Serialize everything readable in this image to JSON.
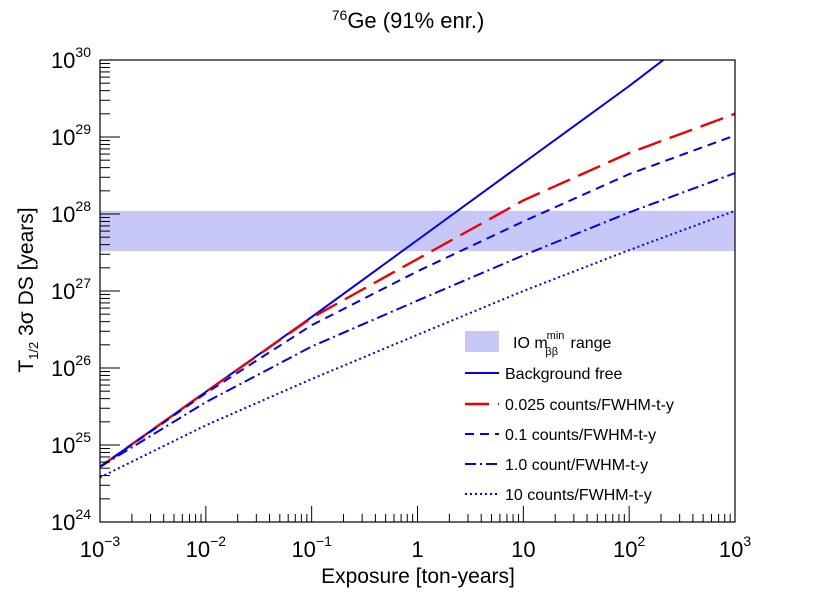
{
  "chart_data": {
    "type": "line",
    "title": {
      "sup": "76",
      "text": "Ge (91% enr.)"
    },
    "xlabel": "Exposure [ton-years]",
    "ylabel": {
      "base": "T",
      "sub": "1/2",
      "rest": " 3σ DS [years]"
    },
    "xscale": "log",
    "yscale": "log",
    "xlim": [
      0.001,
      1000
    ],
    "ylim": [
      1e+24,
      1e+30
    ],
    "x_ticks": [
      {
        "value": 0.001,
        "base": "10",
        "exp": "−3"
      },
      {
        "value": 0.01,
        "base": "10",
        "exp": "−2"
      },
      {
        "value": 0.1,
        "base": "10",
        "exp": "−1"
      },
      {
        "value": 1,
        "base": "1",
        "exp": ""
      },
      {
        "value": 10,
        "base": "10",
        "exp": ""
      },
      {
        "value": 100,
        "base": "10",
        "exp": "2"
      },
      {
        "value": 1000,
        "base": "10",
        "exp": "3"
      }
    ],
    "y_ticks": [
      {
        "value": 1e+24,
        "base": "10",
        "exp": "24"
      },
      {
        "value": 1e+25,
        "base": "10",
        "exp": "25"
      },
      {
        "value": 1e+26,
        "base": "10",
        "exp": "26"
      },
      {
        "value": 1e+27,
        "base": "10",
        "exp": "27"
      },
      {
        "value": 1e+28,
        "base": "10",
        "exp": "28"
      },
      {
        "value": 1e+29,
        "base": "10",
        "exp": "29"
      },
      {
        "value": 1e+30,
        "base": "10",
        "exp": "30"
      }
    ],
    "band": {
      "label_main": "IO m",
      "label_sub": "ββ",
      "label_sup": "min",
      "label_rest": " range",
      "y_range": [
        3.3e+27,
        1.1e+28
      ],
      "color": "#c8c8f8"
    },
    "series": [
      {
        "name": "Background free",
        "color": "#0000ee",
        "dash": "solid",
        "x": [
          0.001,
          0.01,
          0.1,
          1,
          10,
          100,
          210
        ],
        "y": [
          5.2e+24,
          4.9e+25,
          4.6e+26,
          4.6e+27,
          4.6e+28,
          4.6e+29,
          1e+30
        ]
      },
      {
        "name": "0.025 counts/FWHM-t-y",
        "color": "#ee0000",
        "dash": "long-dash",
        "x": [
          0.001,
          0.01,
          0.1,
          1,
          10,
          100,
          1000
        ],
        "y": [
          5.2e+24,
          4.9e+25,
          4.5e+26,
          2.6e+27,
          1.5e+28,
          6.2e+28,
          2e+29
        ]
      },
      {
        "name": "0.1 counts/FWHM-t-y",
        "color": "#0000ee",
        "dash": "dash",
        "x": [
          0.001,
          0.01,
          0.1,
          1,
          10,
          100,
          1000
        ],
        "y": [
          5.2e+24,
          4.7e+25,
          3.6e+26,
          1.8e+27,
          8e+27,
          3.3e+28,
          1.05e+29
        ]
      },
      {
        "name": "1.0 count/FWHM-t-y",
        "color": "#0000ee",
        "dash": "dash-dot",
        "x": [
          0.001,
          0.01,
          0.1,
          1,
          10,
          100,
          1000
        ],
        "y": [
          5.2e+24,
          3.6e+25,
          1.9e+26,
          7.5e+26,
          2.9e+27,
          1.05e+28,
          3.4e+28
        ]
      },
      {
        "name": "10 counts/FWHM-t-y",
        "color": "#0000ee",
        "dash": "dot",
        "x": [
          0.001,
          0.01,
          0.1,
          1,
          10,
          100,
          1000
        ],
        "y": [
          3.8e+24,
          1.8e+25,
          7.2e+25,
          2.7e+26,
          1e+27,
          3.4e+27,
          1.1e+28
        ]
      }
    ],
    "legend_position": "bottom-right"
  }
}
